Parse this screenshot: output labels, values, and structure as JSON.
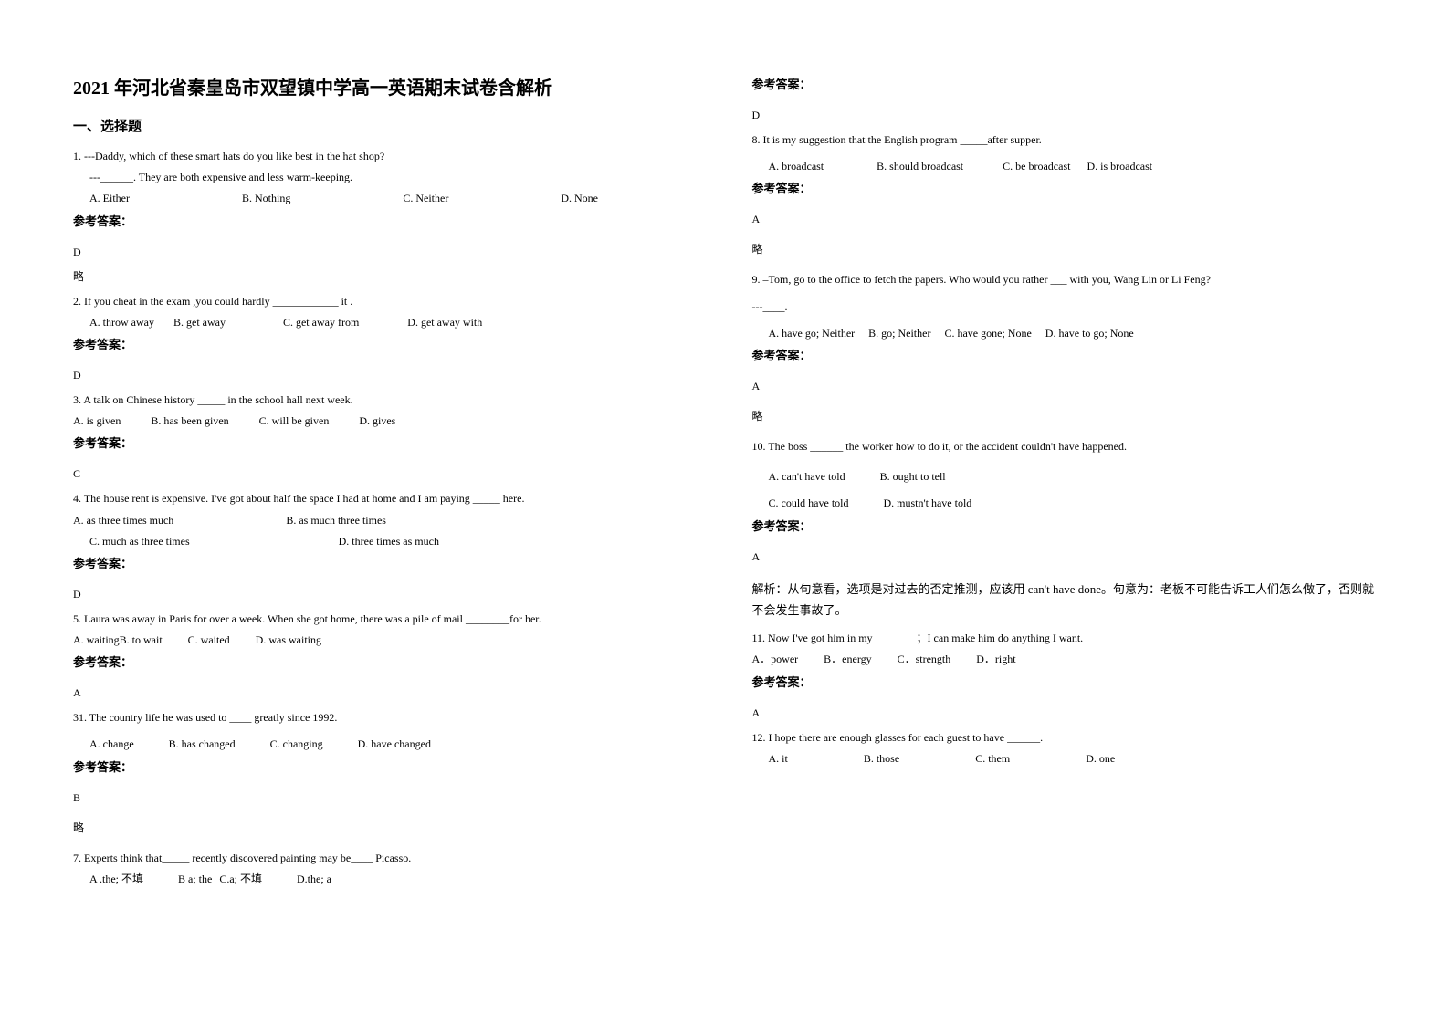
{
  "title": "2021 年河北省秦皇岛市双望镇中学高一英语期末试卷含解析",
  "section1": "一、选择题",
  "answerLabel": "参考答案：",
  "omit": "略",
  "q1": {
    "line1": "1. ---Daddy, which of these smart hats do you like best in the hat shop?",
    "line2": "---______. They are both expensive and less warm-keeping.",
    "optA": "A. Either",
    "optB": "B. Nothing",
    "optC": "C. Neither",
    "optD": "D. None",
    "ans": "D"
  },
  "q2": {
    "line1": "2. If you cheat in the exam ,you could hardly ____________ it .",
    "optA": "A. throw away",
    "optB": "B. get away",
    "optC": "C. get away from",
    "optD": "D. get away with",
    "ans": "D"
  },
  "q3": {
    "line1": "3. A talk on Chinese history _____ in the school hall next week.",
    "optA": "A. is given",
    "optB": "B. has been given",
    "optC": "C. will be given",
    "optD": "D. gives",
    "ans": "C"
  },
  "q4": {
    "line1": "4. The house rent is expensive. I've got about half the space I had at home and I am paying _____ here.",
    "optA": "A. as three times much",
    "optB": "B. as much three times",
    "optC": "C. much as three times",
    "optD": "D. three times as much",
    "ans": "D"
  },
  "q5": {
    "line1": "5. Laura was away in Paris for over a week. When she got home, there was a pile of mail ________for her.",
    "optA": "A. waiting",
    "optB": "B. to wait",
    "optC": "C. waited",
    "optD": "D. was waiting",
    "ans": "A"
  },
  "q6": {
    "line1": "31. The country life he was used to ____ greatly since 1992.",
    "optA": "A. change",
    "optB": "B. has changed",
    "optC": "C. changing",
    "optD": "D. have changed",
    "ans": "B"
  },
  "q7": {
    "line1": "7. Experts think that_____ recently discovered painting may be____ Picasso.",
    "optA": "A .the; 不填",
    "optB": "B a; the",
    "optC": "C.a; 不填",
    "optD": "D.the; a",
    "ans": "D"
  },
  "q8": {
    "line1": "8. It is my suggestion that the English program _____after supper.",
    "optA": "A. broadcast",
    "optB": "B. should broadcast",
    "optC": "C. be broadcast",
    "optD": "D. is broadcast",
    "ans": "A"
  },
  "q9": {
    "line1": "9. –Tom, go to the office to fetch the papers. Who would you rather ___ with you, Wang Lin or Li Feng?",
    "line2": " ---____.",
    "optA": "A. have go; Neither",
    "optB": "B. go; Neither",
    "optC": "C. have gone; None",
    "optD": "D. have to go; None",
    "ans": "A"
  },
  "q10": {
    "line1": "10. The boss ______ the worker how to do it, or the accident couldn't have happened.",
    "optA": "A. can't have told",
    "optB": "B. ought to tell",
    "optC": "C. could have told",
    "optD": "D. mustn't have told",
    "ans": "A",
    "explain": "解析：从句意看，选项是对过去的否定推测，应该用 can't have done。句意为：老板不可能告诉工人们怎么做了，否则就不会发生事故了。"
  },
  "q11": {
    "line1": "11. Now I've got him in my________；I can make him do anything I want.",
    "optA": "A．power",
    "optB": "B．energy",
    "optC": "C．strength",
    "optD": "D．right",
    "ans": "A"
  },
  "q12": {
    "line1": "12. I hope there are enough glasses for each guest to have ______.",
    "optA": "A. it",
    "optB": "B. those",
    "optC": "C. them",
    "optD": "D. one"
  }
}
